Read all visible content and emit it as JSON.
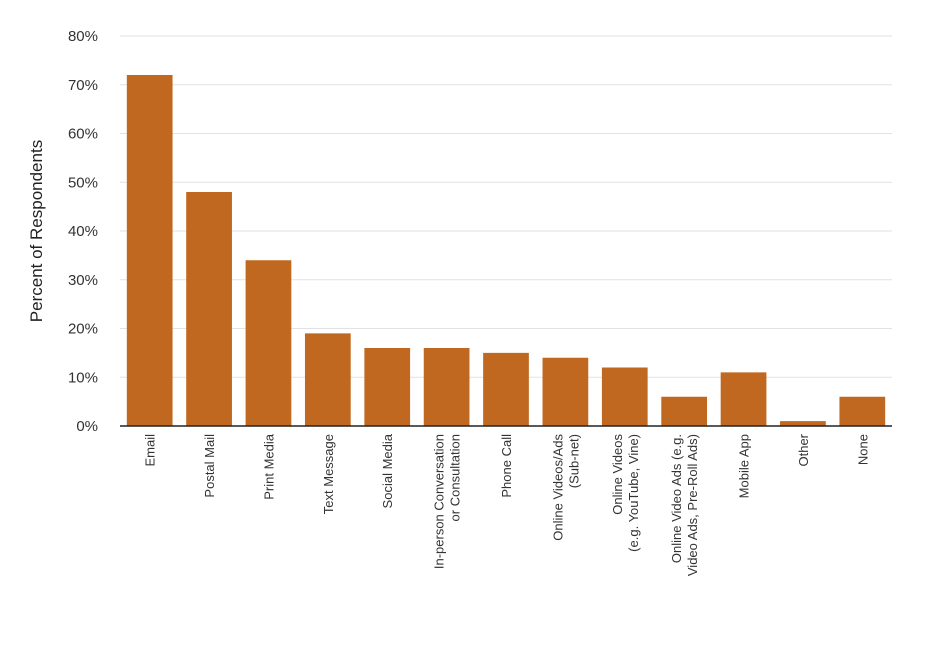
{
  "chart_data": {
    "type": "bar",
    "title": "",
    "xlabel": "",
    "ylabel": "Percent of Respondents",
    "ylim": [
      0,
      80
    ],
    "yticks": [
      "0%",
      "10%",
      "20%",
      "30%",
      "40%",
      "50%",
      "60%",
      "70%",
      "80%"
    ],
    "grid": true,
    "bar_color": "#c0681f",
    "categories": [
      [
        "Email"
      ],
      [
        "Postal Mail"
      ],
      [
        "Print Media"
      ],
      [
        "Text Message"
      ],
      [
        "Social Media"
      ],
      [
        "In-person Conversation",
        "or Consultation"
      ],
      [
        "Phone Call"
      ],
      [
        "Online Videos/Ads",
        "(Sub-net)"
      ],
      [
        "Online Videos",
        "(e.g. YouTube, Vine)"
      ],
      [
        "Online Video Ads (e.g.",
        "Video Ads, Pre-Roll Ads)"
      ],
      [
        "Mobile App"
      ],
      [
        "Other"
      ],
      [
        "None"
      ]
    ],
    "values": [
      72,
      48,
      34,
      19,
      16,
      16,
      15,
      14,
      12,
      6,
      11,
      1,
      6
    ]
  }
}
